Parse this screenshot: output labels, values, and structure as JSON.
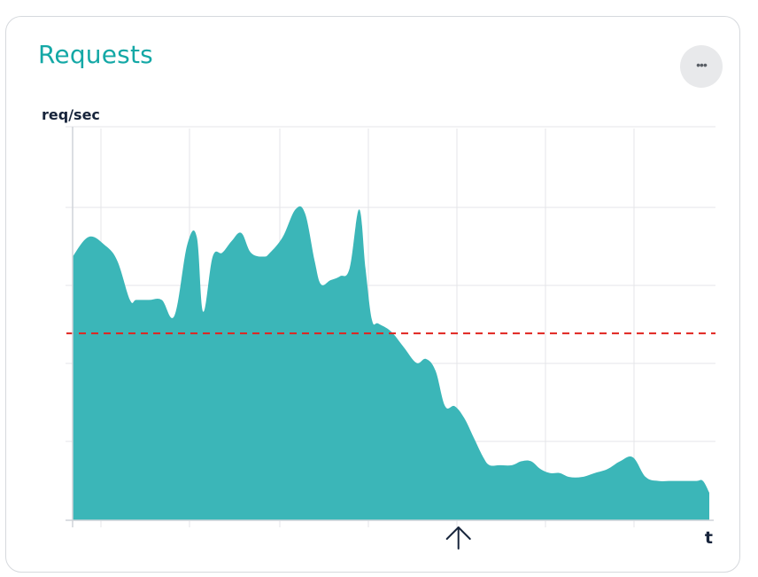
{
  "header": {
    "title": "Requests",
    "menu_icon": "more-horizontal-icon"
  },
  "chart_data": {
    "type": "area",
    "ylabel": "req/sec",
    "xlabel": "t",
    "x_range": [
      0,
      100
    ],
    "y_range": [
      0,
      100
    ],
    "grid": true,
    "fill_color": "#3bb6b8",
    "threshold": {
      "value": 47.5,
      "color": "#e0241f",
      "style": "dashed"
    },
    "marker": {
      "x": 60.6,
      "icon": "arrow-up-icon"
    },
    "x": [
      0,
      2.5,
      5,
      7,
      9,
      10,
      12,
      14,
      16,
      18,
      19.5,
      20.5,
      22,
      23.5,
      25,
      26.5,
      28,
      30,
      31,
      33,
      35,
      36.5,
      38,
      39,
      40.5,
      42,
      43.5,
      45,
      46,
      47,
      48,
      50,
      52,
      54,
      55.5,
      57,
      58.5,
      60,
      61.5,
      63,
      64.5,
      65.5,
      67,
      69,
      70.5,
      72,
      73.5,
      75,
      76.5,
      78,
      80,
      82,
      84,
      86,
      88,
      90,
      92,
      94,
      96,
      98,
      99,
      100
    ],
    "values": [
      67,
      72,
      70,
      66,
      56,
      56,
      56,
      56,
      52,
      70,
      72,
      53,
      67,
      68,
      71,
      73,
      68,
      67,
      68,
      72,
      79,
      78,
      66,
      60,
      61,
      62,
      64,
      79,
      64,
      51,
      50,
      48,
      44,
      40,
      41,
      38,
      29,
      29,
      26,
      21,
      16,
      14,
      14,
      14,
      15,
      15,
      13,
      12,
      12,
      11,
      11,
      12,
      13,
      15,
      16,
      11,
      10,
      10,
      10,
      10,
      10,
      7
    ]
  }
}
